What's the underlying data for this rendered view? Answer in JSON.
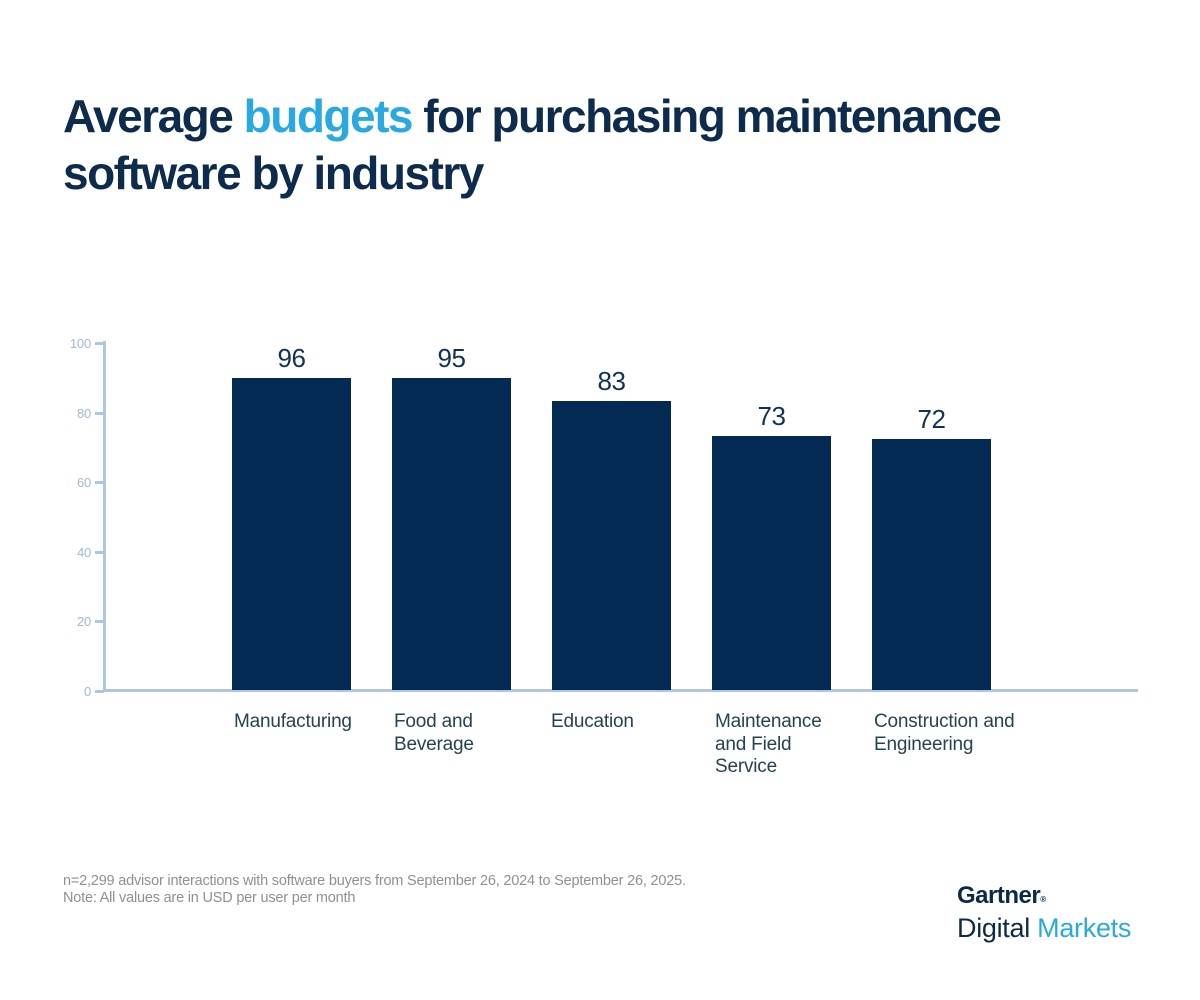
{
  "title": {
    "part1": "Average ",
    "accent": "budgets",
    "part2": " for purchasing maintenance\nsoftware by industry",
    "text_color": "#0d2b4d",
    "accent_color": "#29a9e1"
  },
  "chart_data": {
    "type": "bar",
    "title": "Average budgets for purchasing maintenance software by industry",
    "categories": [
      "Manufacturing",
      "Food and Beverage",
      "Education",
      "Maintenance and Field Service",
      "Construction and Engineering"
    ],
    "category_labels_wrapped": [
      "Manufacturing",
      "Food and\nBeverage",
      "Education",
      "Maintenance\nand Field\nService",
      "Construction and\nEngineering"
    ],
    "values": [
      96,
      95,
      83,
      73,
      72
    ],
    "xlabel": "",
    "ylabel": "",
    "ylim": [
      0,
      100
    ],
    "yticks": [
      "0",
      "20",
      "40",
      "60",
      "80",
      "100"
    ],
    "grid": false,
    "legend_position": "none",
    "bar_color": "#032a52",
    "value_label_color": "#113357",
    "axis_color": "#aec6e3",
    "tick_label_color": "#9fb9d9",
    "category_label_color": "#264353"
  },
  "footnotes": {
    "line1": "n=2,299 advisor interactions with software buyers from September 26, 2024 to September 26, 2025.",
    "line2": "Note: All values are in USD per user per month"
  },
  "logo": {
    "gartner": "Gartner",
    "reg": "®",
    "digital": "Digital ",
    "markets": "Markets",
    "navy": "#0c2a48",
    "blue": "#29a9e1"
  }
}
